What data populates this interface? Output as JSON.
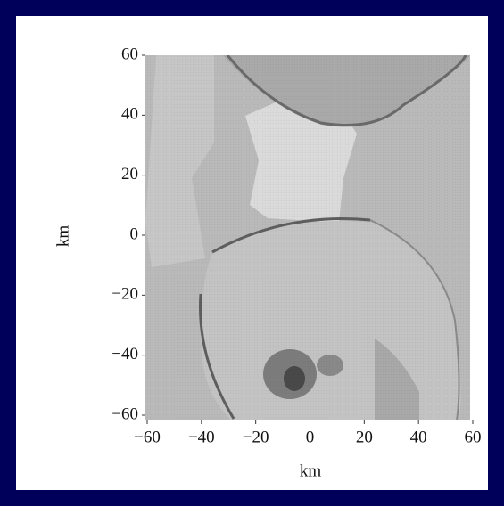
{
  "chart_data": {
    "type": "map",
    "xlabel": "km",
    "ylabel": "km",
    "xlim": [
      -60,
      60
    ],
    "ylim": [
      -60,
      60
    ],
    "xticks": [
      -60,
      -40,
      -20,
      0,
      20,
      40,
      60
    ],
    "yticks": [
      -60,
      -40,
      -20,
      0,
      20,
      40,
      60
    ]
  }
}
